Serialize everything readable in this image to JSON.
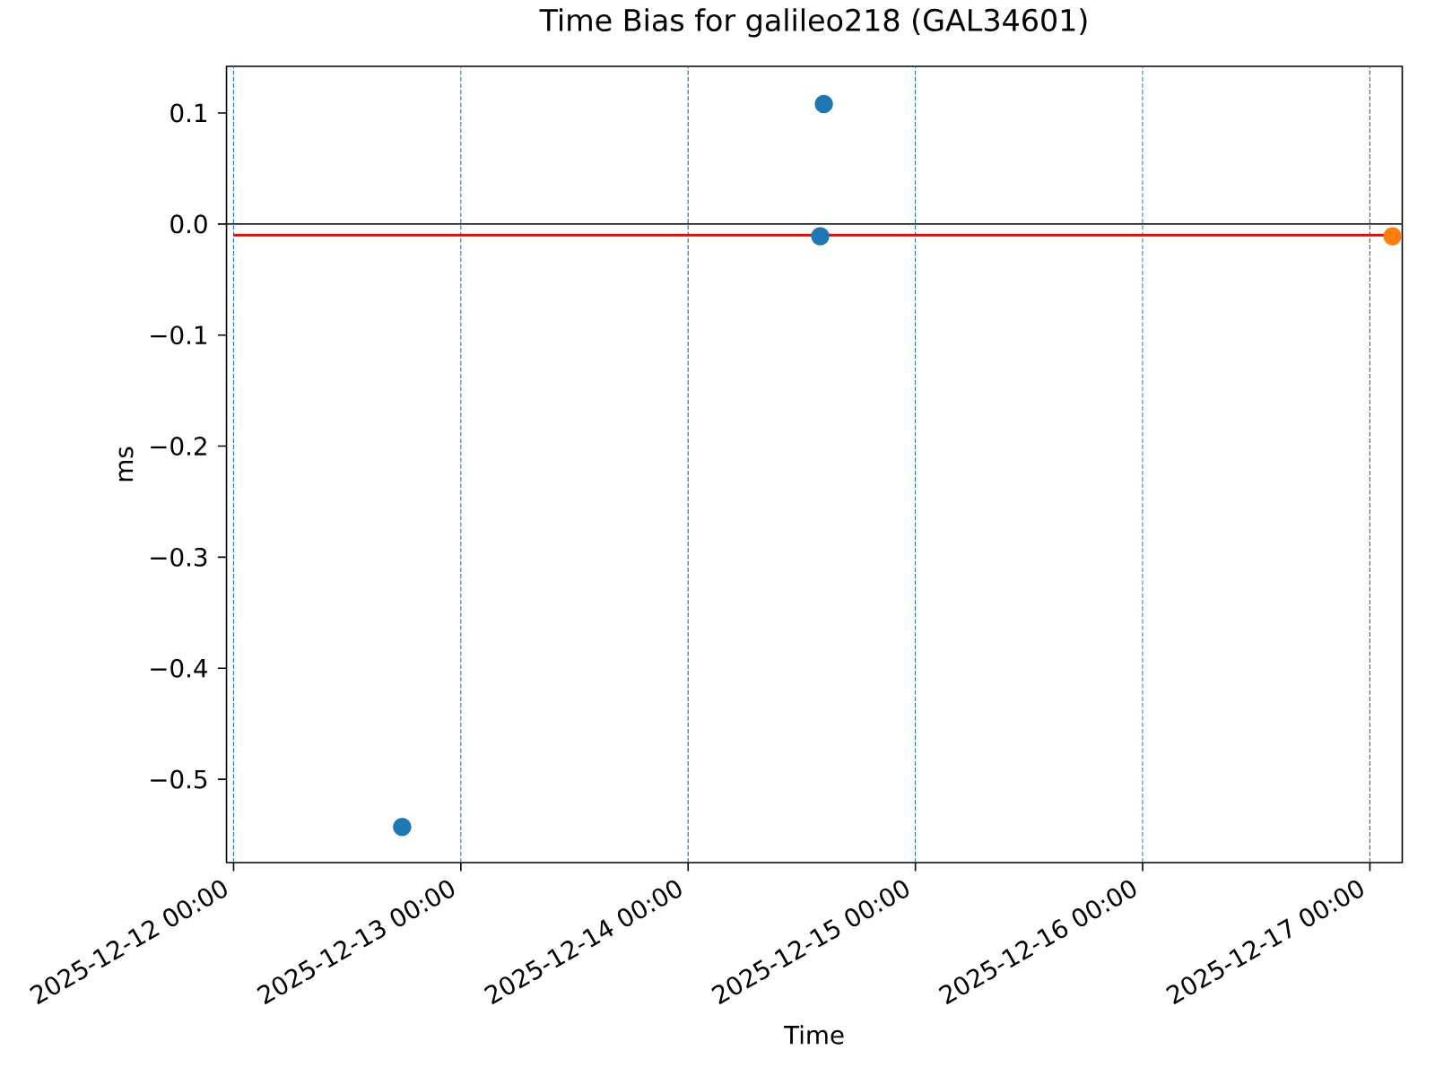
{
  "chart_data": {
    "type": "scatter",
    "title": "Time Bias for galileo218 (GAL34601)",
    "xlabel": "Time",
    "ylabel": "ms",
    "xlim": [
      "2025-12-11T23:15",
      "2025-12-17T03:25"
    ],
    "xticks": [
      {
        "value": "2025-12-12",
        "label": "2025-12-12 00:00"
      },
      {
        "value": "2025-12-13",
        "label": "2025-12-13 00:00"
      },
      {
        "value": "2025-12-14",
        "label": "2025-12-14 00:00"
      },
      {
        "value": "2025-12-15",
        "label": "2025-12-15 00:00"
      },
      {
        "value": "2025-12-16",
        "label": "2025-12-16 00:00"
      },
      {
        "value": "2025-12-17",
        "label": "2025-12-17 00:00"
      }
    ],
    "ylim": [
      -0.575,
      0.142
    ],
    "yticks": [
      {
        "value": -0.5,
        "label": "−0.5"
      },
      {
        "value": -0.4,
        "label": "−0.4"
      },
      {
        "value": -0.3,
        "label": "−0.3"
      },
      {
        "value": -0.2,
        "label": "−0.2"
      },
      {
        "value": -0.1,
        "label": "−0.1"
      },
      {
        "value": 0.0,
        "label": "0.0"
      },
      {
        "value": 0.1,
        "label": "0.1"
      }
    ],
    "series": [
      {
        "type": "line",
        "color": "#ff0000",
        "marker": "none",
        "x": [
          "2025-12-12T00:00",
          "2025-12-17T02:23"
        ],
        "values": [
          -0.01,
          -0.01
        ]
      },
      {
        "color": "#1f77b4",
        "x": [
          "2025-12-12T17:48",
          "2025-12-14T14:20",
          "2025-12-14T13:57"
        ],
        "values": [
          -0.543,
          0.108,
          -0.011
        ]
      },
      {
        "color": "#ff7f0e",
        "x": [
          "2025-12-17T02:23"
        ],
        "values": [
          -0.011
        ]
      }
    ],
    "ref_lines": [
      {
        "axis": "y",
        "value": 0,
        "color": "#000000"
      },
      {
        "axis": "x",
        "value": "2025-12-12",
        "color": "#1f77b4",
        "line_style": "dashed"
      },
      {
        "axis": "x",
        "value": "2025-12-13",
        "color": "#1f77b4",
        "line_style": "dashed"
      },
      {
        "axis": "x",
        "value": "2025-12-14",
        "color": "#1f77b4",
        "line_style": "dashed"
      },
      {
        "axis": "x",
        "value": "2025-12-15",
        "color": "#1f77b4",
        "line_style": "dashed"
      },
      {
        "axis": "x",
        "value": "2025-12-16",
        "color": "#1f77b4",
        "line_style": "dashed"
      },
      {
        "axis": "x",
        "value": "2025-12-17",
        "color": "#1f77b4",
        "line_style": "dashed"
      }
    ],
    "legend": false,
    "marker": "circle"
  }
}
